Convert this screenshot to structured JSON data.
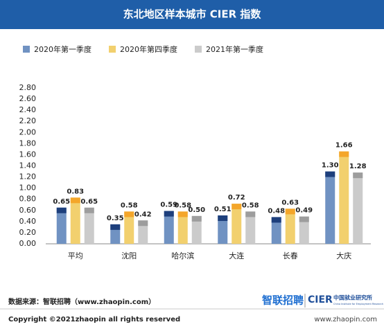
{
  "chart_data": {
    "type": "bar",
    "title": "东北地区样本城市 CIER 指数",
    "categories": [
      "平均",
      "沈阳",
      "哈尔滨",
      "大连",
      "长春",
      "大庆"
    ],
    "series": [
      {
        "name": "2020年第一季度",
        "color": "#7092c2",
        "cap_color": "#1d3f7c",
        "values": [
          0.65,
          0.35,
          0.59,
          0.51,
          0.48,
          1.3
        ],
        "value_labels": [
          "0.65",
          "0.35",
          "0.59",
          "0.51",
          "0.48",
          "1.30"
        ]
      },
      {
        "name": "2020年第四季度",
        "color": "#f2d06e",
        "cap_color": "#f4a62a",
        "values": [
          0.83,
          0.58,
          0.58,
          0.72,
          0.63,
          1.66
        ],
        "value_labels": [
          "0.83",
          "0.58",
          "0.58",
          "0.72",
          "0.63",
          "1.66"
        ]
      },
      {
        "name": "2021年第一季度",
        "color": "#cbcbcb",
        "cap_color": "#9d9d9d",
        "values": [
          0.65,
          0.42,
          0.5,
          0.58,
          0.49,
          1.28
        ],
        "value_labels": [
          "0.65",
          "0.42",
          "0.50",
          "0.58",
          "0.49",
          "1.28"
        ]
      }
    ],
    "ylim": [
      0,
      2.8
    ],
    "yticks": [
      {
        "value": 0,
        "label": "0.00"
      },
      {
        "value": 0.2,
        "label": "0.20"
      },
      {
        "value": 0.4,
        "label": "0.40"
      },
      {
        "value": 0.6,
        "label": "0.60"
      },
      {
        "value": 0.8,
        "label": "0.80"
      },
      {
        "value": 1.0,
        "label": "1.00"
      },
      {
        "value": 1.2,
        "label": "1.20"
      },
      {
        "value": 1.4,
        "label": "1.40"
      },
      {
        "value": 1.6,
        "label": "1.60"
      },
      {
        "value": 1.8,
        "label": "1.80"
      },
      {
        "value": 2.0,
        "label": "2.00"
      },
      {
        "value": 2.2,
        "label": "2.20"
      },
      {
        "value": 2.4,
        "label": "2.40"
      },
      {
        "value": 2.6,
        "label": "2.60"
      },
      {
        "value": 2.8,
        "label": "2.80"
      }
    ],
    "grid": false,
    "legend": "top-left"
  },
  "footer": {
    "source": "数据来源：智联招聘（www.zhaopin.com）",
    "copyright": "Copyright ©2021zhaopin all rights reserved",
    "logo_zhaopin": "智联招聘",
    "logo_cier": "CIER",
    "logo_cier_cn": "中国就业研究所",
    "logo_cier_en": "China Institute for Employment Research",
    "url": "www.zhaopin.com"
  }
}
